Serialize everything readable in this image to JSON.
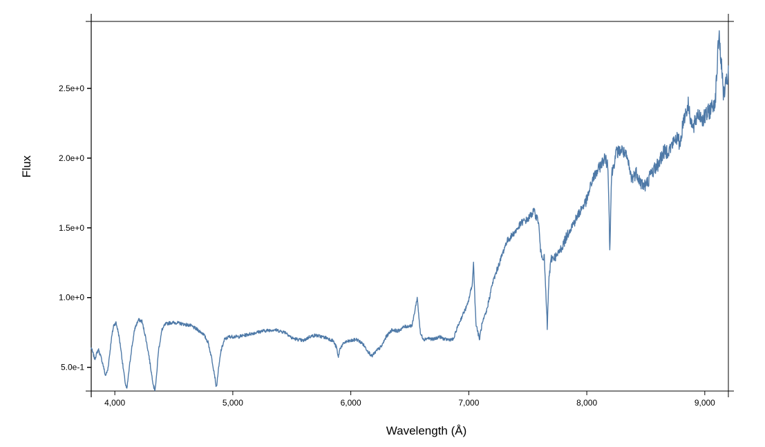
{
  "chart_data": {
    "type": "line",
    "title": "",
    "xlabel": "Wavelength (Å)",
    "ylabel": "Flux",
    "xlim": [
      3800,
      9200
    ],
    "ylim": [
      0.33,
      2.98
    ],
    "x_ticks": [
      4000,
      5000,
      6000,
      7000,
      8000,
      9000
    ],
    "x_tick_labels": [
      "4,000",
      "5,000",
      "6,000",
      "7,000",
      "8,000",
      "9,000"
    ],
    "y_ticks": [
      0.5,
      1.0,
      1.5,
      2.0,
      2.5
    ],
    "y_tick_labels": [
      "5.0e-1",
      "1.0e+0",
      "1.5e+0",
      "2.0e+0",
      "2.5e+0"
    ],
    "grid": false,
    "legend": "none",
    "series": [
      {
        "color": "#4e79a7",
        "x": [
          3800,
          3830,
          3860,
          3880,
          3900,
          3920,
          3940,
          3960,
          3970,
          3990,
          4010,
          4030,
          4050,
          4070,
          4090,
          4102,
          4115,
          4140,
          4170,
          4200,
          4230,
          4260,
          4290,
          4310,
          4330,
          4340,
          4350,
          4370,
          4400,
          4430,
          4470,
          4520,
          4580,
          4640,
          4700,
          4750,
          4790,
          4820,
          4845,
          4861,
          4875,
          4900,
          4930,
          4970,
          5050,
          5150,
          5250,
          5350,
          5450,
          5500,
          5550,
          5600,
          5650,
          5700,
          5800,
          5850,
          5880,
          5893,
          5910,
          5950,
          6050,
          6100,
          6150,
          6180,
          6220,
          6260,
          6300,
          6350,
          6400,
          6450,
          6520,
          6563,
          6590,
          6620,
          6650,
          6700,
          6750,
          6800,
          6870,
          6900,
          6950,
          6990,
          7030,
          7040,
          7060,
          7090,
          7110,
          7150,
          7200,
          7240,
          7280,
          7320,
          7350,
          7400,
          7450,
          7500,
          7550,
          7590,
          7610,
          7640,
          7665,
          7680,
          7700,
          7750,
          7800,
          7850,
          7900,
          7950,
          8000,
          8050,
          8100,
          8150,
          8180,
          8195,
          8210,
          8250,
          8300,
          8340,
          8380,
          8420,
          8460,
          8500,
          8550,
          8600,
          8650,
          8700,
          8760,
          8790,
          8820,
          8860,
          8900,
          8940,
          8990,
          9050,
          9090,
          9120,
          9160,
          9200
        ],
        "y": [
          0.64,
          0.56,
          0.63,
          0.58,
          0.52,
          0.44,
          0.48,
          0.62,
          0.7,
          0.8,
          0.82,
          0.75,
          0.64,
          0.5,
          0.38,
          0.34,
          0.44,
          0.62,
          0.78,
          0.84,
          0.83,
          0.72,
          0.58,
          0.46,
          0.36,
          0.34,
          0.4,
          0.62,
          0.77,
          0.81,
          0.82,
          0.82,
          0.81,
          0.8,
          0.77,
          0.74,
          0.68,
          0.57,
          0.45,
          0.35,
          0.46,
          0.62,
          0.7,
          0.72,
          0.72,
          0.74,
          0.76,
          0.77,
          0.75,
          0.71,
          0.7,
          0.69,
          0.72,
          0.73,
          0.71,
          0.69,
          0.64,
          0.57,
          0.64,
          0.68,
          0.7,
          0.67,
          0.61,
          0.58,
          0.62,
          0.65,
          0.72,
          0.77,
          0.76,
          0.79,
          0.8,
          1.0,
          0.74,
          0.7,
          0.71,
          0.7,
          0.72,
          0.7,
          0.7,
          0.78,
          0.88,
          0.95,
          1.1,
          1.25,
          0.82,
          0.7,
          0.8,
          0.9,
          1.1,
          1.2,
          1.3,
          1.4,
          1.43,
          1.48,
          1.54,
          1.56,
          1.62,
          1.55,
          1.32,
          1.28,
          0.79,
          1.15,
          1.28,
          1.3,
          1.38,
          1.48,
          1.55,
          1.63,
          1.7,
          1.85,
          1.92,
          2.0,
          1.95,
          1.35,
          1.88,
          2.04,
          2.06,
          2.0,
          1.85,
          1.9,
          1.82,
          1.8,
          1.9,
          1.95,
          2.04,
          2.06,
          2.15,
          2.1,
          2.28,
          2.38,
          2.2,
          2.32,
          2.28,
          2.35,
          2.42,
          2.9,
          2.45,
          2.6
        ]
      }
    ]
  }
}
